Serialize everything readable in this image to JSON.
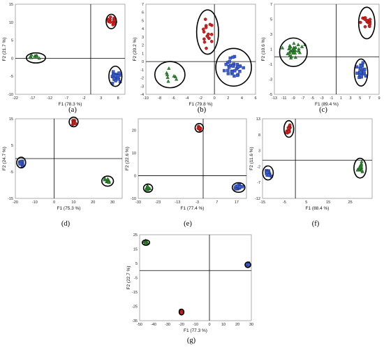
{
  "colors": {
    "red": "#d42020",
    "blue": "#3a5fd0",
    "green": "#2f8a2f",
    "outline": "#000000"
  },
  "chart_data": [
    {
      "panel": "(a)",
      "type": "scatter",
      "xlabel": "F1 (78.3 %)",
      "ylabel": "F2 (21.7 %)",
      "xlim": [
        -22,
        10
      ],
      "ylim": [
        -10,
        15
      ],
      "xticks": [
        -22,
        -17,
        -12,
        -7,
        -2,
        3,
        8
      ],
      "yticks": [
        -10,
        -5,
        0,
        5,
        10,
        15
      ],
      "series": [
        {
          "color": "red",
          "marker": "circle",
          "center": [
            6.0,
            10.2
          ],
          "spread": [
            1.0,
            1.2
          ],
          "n": 14
        },
        {
          "color": "blue",
          "marker": "square",
          "center": [
            7.2,
            -5.0
          ],
          "spread": [
            1.2,
            1.5
          ],
          "n": 26
        },
        {
          "color": "green",
          "marker": "triangle",
          "center": [
            -16.0,
            0.3
          ],
          "spread": [
            1.6,
            0.6
          ],
          "n": 9
        }
      ],
      "ellipses": [
        {
          "center": [
            6.0,
            10.2
          ],
          "r": [
            1.5,
            2.0
          ]
        },
        {
          "center": [
            7.2,
            -5.0
          ],
          "r": [
            1.9,
            2.8
          ]
        },
        {
          "center": [
            -16.0,
            0.1
          ],
          "r": [
            2.8,
            1.4
          ]
        }
      ]
    },
    {
      "panel": "(b)",
      "type": "scatter",
      "xlabel": "F1 (79.8 %)",
      "ylabel": "F2 (20.2 %)",
      "xlim": [
        -10,
        6
      ],
      "ylim": [
        -4,
        7
      ],
      "xticks": [
        -10,
        -8,
        -6,
        -4,
        -2,
        0,
        2,
        4,
        6
      ],
      "yticks": [
        -4,
        -3,
        -2,
        -1,
        0,
        1,
        2,
        3,
        4,
        5,
        6,
        7
      ],
      "series": [
        {
          "color": "red",
          "marker": "circle",
          "center": [
            -1.0,
            3.8
          ],
          "spread": [
            0.9,
            1.5
          ],
          "n": 16
        },
        {
          "color": "blue",
          "marker": "square",
          "center": [
            2.8,
            -0.8
          ],
          "spread": [
            1.4,
            1.2
          ],
          "n": 30
        },
        {
          "color": "green",
          "marker": "triangle",
          "center": [
            -6.5,
            -1.8
          ],
          "spread": [
            1.2,
            1.1
          ],
          "n": 8
        }
      ],
      "ellipses": [
        {
          "center": [
            -1.0,
            3.6
          ],
          "r": [
            1.6,
            2.7
          ]
        },
        {
          "center": [
            2.8,
            -0.7
          ],
          "r": [
            2.6,
            2.3
          ]
        },
        {
          "center": [
            -6.5,
            -1.6
          ],
          "r": [
            2.2,
            1.6
          ]
        }
      ]
    },
    {
      "panel": "(c)",
      "type": "scatter",
      "xlabel": "F1 (89.4 %)",
      "ylabel": "F2 (10.6 %)",
      "xlim": [
        -13,
        9
      ],
      "ylim": [
        -5,
        7
      ],
      "xticks": [
        -13,
        -11,
        -9,
        -7,
        -5,
        -3,
        -1,
        1,
        3,
        5,
        7,
        9
      ],
      "yticks": [
        -5,
        -3,
        -1,
        1,
        3,
        5,
        7
      ],
      "series": [
        {
          "color": "red",
          "marker": "circle",
          "center": [
            6.4,
            4.6
          ],
          "spread": [
            1.0,
            1.0
          ],
          "n": 16
        },
        {
          "color": "blue",
          "marker": "square",
          "center": [
            5.3,
            -2.0
          ],
          "spread": [
            0.8,
            1.0
          ],
          "n": 26
        },
        {
          "color": "green",
          "marker": "triangle",
          "center": [
            -9.0,
            0.7
          ],
          "spread": [
            1.8,
            1.1
          ],
          "n": 30
        }
      ],
      "ellipses": [
        {
          "center": [
            6.4,
            4.5
          ],
          "r": [
            1.7,
            2.1
          ]
        },
        {
          "center": [
            5.2,
            -2.1
          ],
          "r": [
            1.4,
            1.8
          ]
        },
        {
          "center": [
            -9.0,
            0.6
          ],
          "r": [
            2.9,
            1.9
          ]
        }
      ]
    },
    {
      "panel": "(d)",
      "type": "scatter",
      "xlabel": "F1 (75.3 %)",
      "ylabel": "F2 (24.7 %)",
      "xlim": [
        -20,
        35
      ],
      "ylim": [
        -15,
        15
      ],
      "xticks": [
        -20,
        -10,
        0,
        10,
        20,
        30
      ],
      "yticks": [
        -15,
        -5,
        5,
        15
      ],
      "series": [
        {
          "color": "red",
          "marker": "circle",
          "center": [
            10.0,
            13.8
          ],
          "spread": [
            1.0,
            0.8
          ],
          "n": 12
        },
        {
          "color": "blue",
          "marker": "square",
          "center": [
            -17.0,
            -1.5
          ],
          "spread": [
            1.0,
            0.9
          ],
          "n": 14
        },
        {
          "color": "green",
          "marker": "triangle",
          "center": [
            27.5,
            -8.5
          ],
          "spread": [
            1.3,
            0.8
          ],
          "n": 10
        }
      ],
      "ellipses": [
        {
          "center": [
            10.0,
            13.8
          ],
          "r": [
            2.3,
            1.8
          ]
        },
        {
          "center": [
            -17.0,
            -1.5
          ],
          "r": [
            2.3,
            2.0
          ]
        },
        {
          "center": [
            27.5,
            -8.5
          ],
          "r": [
            3.0,
            1.9
          ]
        }
      ]
    },
    {
      "panel": "(e)",
      "type": "scatter",
      "xlabel": "F1 (77.4 %)",
      "ylabel": "F2 (22.6 %)",
      "xlim": [
        -33,
        22
      ],
      "ylim": [
        -10,
        25
      ],
      "xticks": [
        -33,
        -23,
        -13,
        -3,
        7,
        17
      ],
      "yticks": [
        -10,
        0,
        10,
        20
      ],
      "series": [
        {
          "color": "red",
          "marker": "circle",
          "center": [
            -2.0,
            21.0
          ],
          "spread": [
            0.9,
            0.9
          ],
          "n": 12
        },
        {
          "color": "blue",
          "marker": "square",
          "center": [
            18.0,
            -5.0
          ],
          "spread": [
            1.5,
            0.9
          ],
          "n": 24
        },
        {
          "color": "green",
          "marker": "triangle",
          "center": [
            -28.0,
            -5.5
          ],
          "spread": [
            1.2,
            0.9
          ],
          "n": 10
        }
      ],
      "ellipses": [
        {
          "center": [
            -2.0,
            21.0
          ],
          "r": [
            2.1,
            1.9
          ]
        },
        {
          "center": [
            18.0,
            -5.2
          ],
          "r": [
            3.2,
            2.1
          ]
        },
        {
          "center": [
            -28.0,
            -5.5
          ],
          "r": [
            2.3,
            1.8
          ]
        }
      ]
    },
    {
      "panel": "(f)",
      "type": "scatter",
      "xlabel": "F1 (88.4 %)",
      "ylabel": "F2 (11.6 %)",
      "xlim": [
        -15,
        35
      ],
      "ylim": [
        -12,
        13
      ],
      "xticks": [
        -15,
        -5,
        5,
        15,
        25
      ],
      "yticks": [
        -12,
        -7,
        -2,
        3,
        8,
        13
      ],
      "series": [
        {
          "color": "red",
          "marker": "circle",
          "center": [
            -3.0,
            9.8
          ],
          "spread": [
            1.0,
            1.2
          ],
          "n": 14
        },
        {
          "color": "blue",
          "marker": "square",
          "center": [
            -12.5,
            -4.0
          ],
          "spread": [
            1.2,
            1.0
          ],
          "n": 22
        },
        {
          "color": "green",
          "marker": "triangle",
          "center": [
            29.5,
            -2.5
          ],
          "spread": [
            1.3,
            1.5
          ],
          "n": 16
        }
      ],
      "ellipses": [
        {
          "center": [
            -3.0,
            9.8
          ],
          "r": [
            2.2,
            2.6
          ]
        },
        {
          "center": [
            -12.5,
            -4.0
          ],
          "r": [
            2.4,
            2.2
          ]
        },
        {
          "center": [
            29.5,
            -2.5
          ],
          "r": [
            2.8,
            3.1
          ]
        }
      ]
    },
    {
      "panel": "(g)",
      "type": "scatter",
      "xlabel": "F1 (77.3 %)",
      "ylabel": "F2 (22.7 %)",
      "xlim": [
        -50,
        30
      ],
      "ylim": [
        -35,
        25
      ],
      "xticks": [
        -50,
        -40,
        -30,
        -20,
        -10,
        0,
        10,
        20,
        30
      ],
      "yticks": [
        -35,
        -25,
        -15,
        -5,
        5,
        15,
        25
      ],
      "series": [
        {
          "color": "red",
          "marker": "circle",
          "center": [
            -20.0,
            -29.0
          ],
          "spread": [
            0.8,
            1.0
          ],
          "n": 8
        },
        {
          "color": "blue",
          "marker": "square",
          "center": [
            27.5,
            4.0
          ],
          "spread": [
            0.9,
            0.8
          ],
          "n": 10
        },
        {
          "color": "green",
          "marker": "triangle",
          "center": [
            -45.5,
            19.5
          ],
          "spread": [
            1.2,
            0.9
          ],
          "n": 10
        }
      ],
      "ellipses": [
        {
          "center": [
            -20.0,
            -29.0
          ],
          "r": [
            1.7,
            2.0
          ]
        },
        {
          "center": [
            27.5,
            4.0
          ],
          "r": [
            2.0,
            1.9
          ]
        },
        {
          "center": [
            -45.5,
            19.5
          ],
          "r": [
            2.6,
            1.9
          ]
        }
      ]
    }
  ]
}
